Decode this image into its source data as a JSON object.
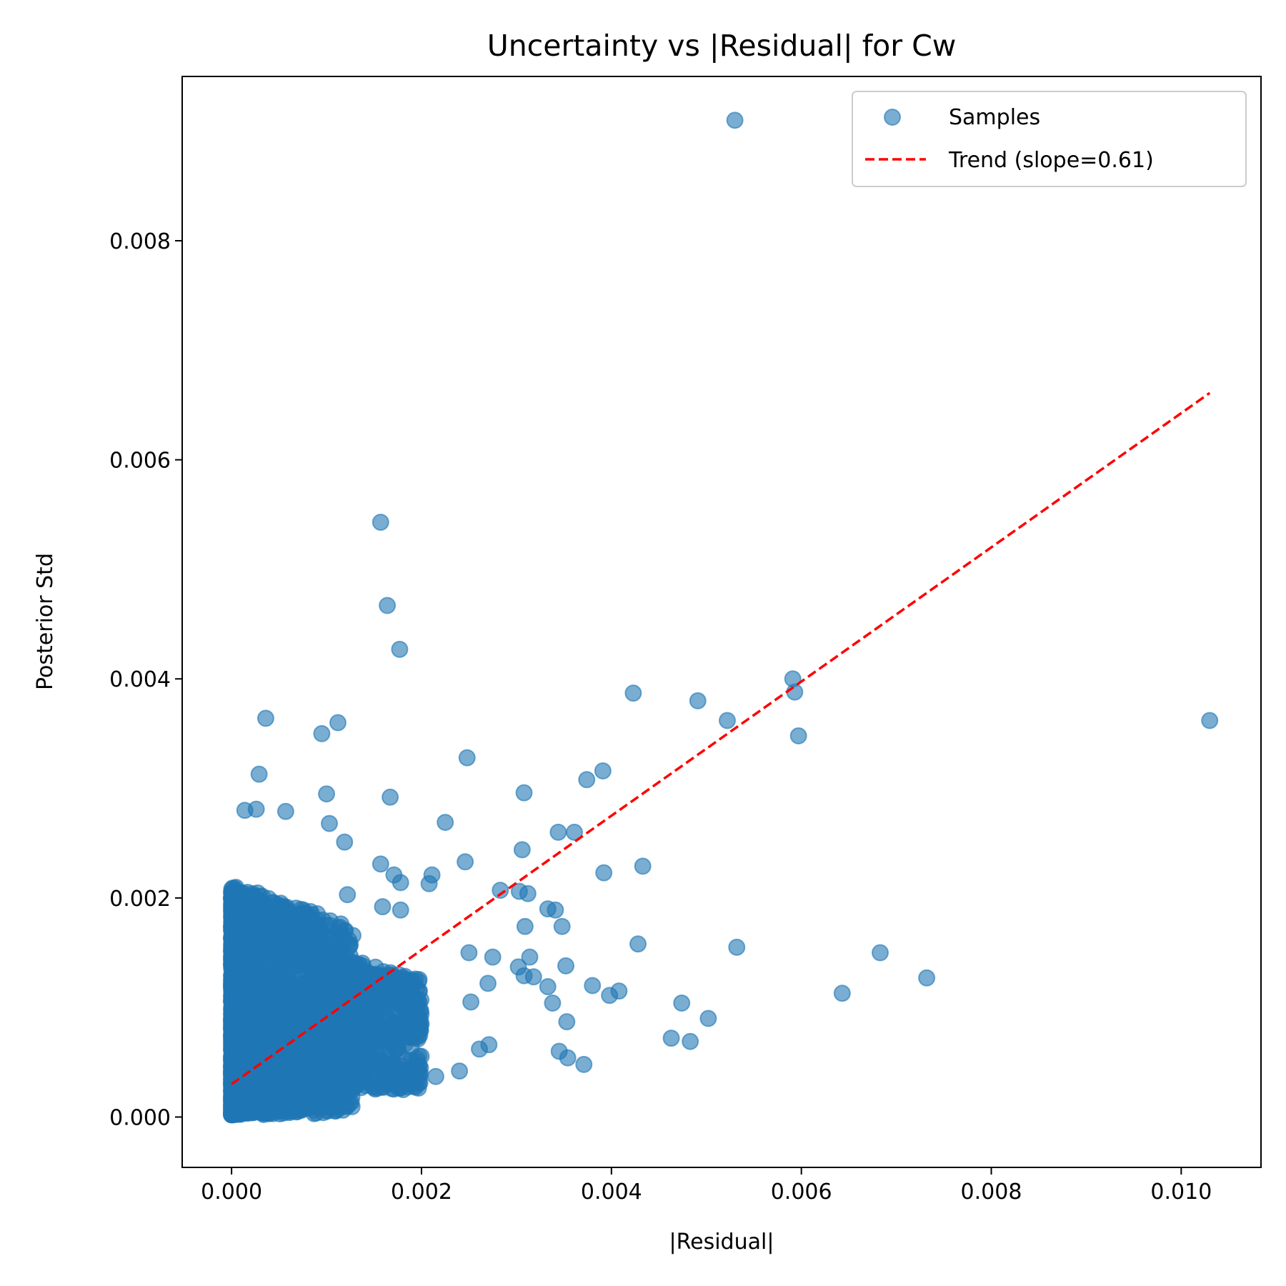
{
  "chart_data": {
    "type": "scatter",
    "title": "Uncertainty vs |Residual| for Cw",
    "xlabel": "|Residual|",
    "ylabel": "Posterior Std",
    "xlim": [
      -0.00052,
      0.01084
    ],
    "ylim": [
      -0.00046,
      0.0095
    ],
    "xticks": [
      0.0,
      0.002,
      0.004,
      0.006,
      0.008,
      0.01
    ],
    "xtick_labels": [
      "0.000",
      "0.002",
      "0.004",
      "0.006",
      "0.008",
      "0.010"
    ],
    "yticks": [
      0.0,
      0.002,
      0.004,
      0.006,
      0.008
    ],
    "ytick_labels": [
      "0.000",
      "0.002",
      "0.004",
      "0.006",
      "0.008"
    ],
    "grid": false,
    "legend": {
      "position": "top-right",
      "entries": [
        "Samples",
        "Trend (slope=0.61)"
      ]
    },
    "colors": {
      "samples": "#1f77b4",
      "trend": "#ff0000"
    },
    "series": [
      {
        "name": "Samples",
        "kind": "scatter",
        "alpha": 0.6,
        "note_dense_cluster": "thousands of overlapping points near origin, |Residual| < 0.0013, Posterior Std < 0.0022",
        "points": [
          [
            0.0053,
            0.0091
          ],
          [
            0.00157,
            0.00543
          ],
          [
            0.00164,
            0.00467
          ],
          [
            0.00177,
            0.00427
          ],
          [
            0.00423,
            0.00387
          ],
          [
            0.00591,
            0.004
          ],
          [
            0.00593,
            0.00388
          ],
          [
            0.00491,
            0.0038
          ],
          [
            0.00522,
            0.00362
          ],
          [
            0.00597,
            0.00348
          ],
          [
            0.0103,
            0.00362
          ],
          [
            0.00036,
            0.00364
          ],
          [
            0.00112,
            0.0036
          ],
          [
            0.00095,
            0.0035
          ],
          [
            0.00248,
            0.00328
          ],
          [
            0.00029,
            0.00313
          ],
          [
            0.00391,
            0.00316
          ],
          [
            0.00374,
            0.00308
          ],
          [
            0.00308,
            0.00296
          ],
          [
            0.001,
            0.00295
          ],
          [
            0.00167,
            0.00292
          ],
          [
            0.00026,
            0.00281
          ],
          [
            0.00014,
            0.0028
          ],
          [
            0.00057,
            0.00279
          ],
          [
            0.00225,
            0.00269
          ],
          [
            0.00103,
            0.00268
          ],
          [
            0.00344,
            0.0026
          ],
          [
            0.00361,
            0.0026
          ],
          [
            0.00119,
            0.00251
          ],
          [
            0.00306,
            0.00244
          ],
          [
            0.00157,
            0.00231
          ],
          [
            0.00246,
            0.00233
          ],
          [
            0.00433,
            0.00229
          ],
          [
            0.00392,
            0.00223
          ],
          [
            0.00171,
            0.00221
          ],
          [
            0.00211,
            0.00221
          ],
          [
            0.00178,
            0.00214
          ],
          [
            0.00208,
            0.00213
          ],
          [
            0.00283,
            0.00207
          ],
          [
            0.00303,
            0.00206
          ],
          [
            0.00312,
            0.00204
          ],
          [
            0.00122,
            0.00203
          ],
          [
            0.00333,
            0.0019
          ],
          [
            0.00341,
            0.00189
          ],
          [
            0.00159,
            0.00192
          ],
          [
            0.00178,
            0.00189
          ],
          [
            0.00348,
            0.00174
          ],
          [
            0.00309,
            0.00174
          ],
          [
            0.00428,
            0.00158
          ],
          [
            0.00532,
            0.00155
          ],
          [
            0.00683,
            0.0015
          ],
          [
            0.0025,
            0.0015
          ],
          [
            0.00275,
            0.00146
          ],
          [
            0.00314,
            0.00146
          ],
          [
            0.00352,
            0.00138
          ],
          [
            0.00302,
            0.00137
          ],
          [
            0.00732,
            0.00127
          ],
          [
            0.00308,
            0.00129
          ],
          [
            0.00318,
            0.00128
          ],
          [
            0.0038,
            0.0012
          ],
          [
            0.00333,
            0.00119
          ],
          [
            0.00408,
            0.00115
          ],
          [
            0.00398,
            0.00111
          ],
          [
            0.00643,
            0.00113
          ],
          [
            0.0027,
            0.00122
          ],
          [
            0.00474,
            0.00104
          ],
          [
            0.00338,
            0.00104
          ],
          [
            0.00252,
            0.00105
          ],
          [
            0.00502,
            0.0009
          ],
          [
            0.00353,
            0.00087
          ],
          [
            0.00463,
            0.00072
          ],
          [
            0.00483,
            0.00069
          ],
          [
            0.00271,
            0.00066
          ],
          [
            0.00261,
            0.00062
          ],
          [
            0.00345,
            0.0006
          ],
          [
            0.00354,
            0.00054
          ],
          [
            0.00371,
            0.00048
          ],
          [
            0.0024,
            0.00042
          ],
          [
            0.00215,
            0.00037
          ],
          [
            0.00186,
            0.00038
          ],
          [
            0.00164,
            0.0003
          ]
        ]
      },
      {
        "name": "Trend (slope=0.61)",
        "kind": "line",
        "style": "dashed",
        "x": [
          0.0,
          0.0103
        ],
        "y": [
          0.0003,
          0.00661
        ]
      }
    ]
  }
}
